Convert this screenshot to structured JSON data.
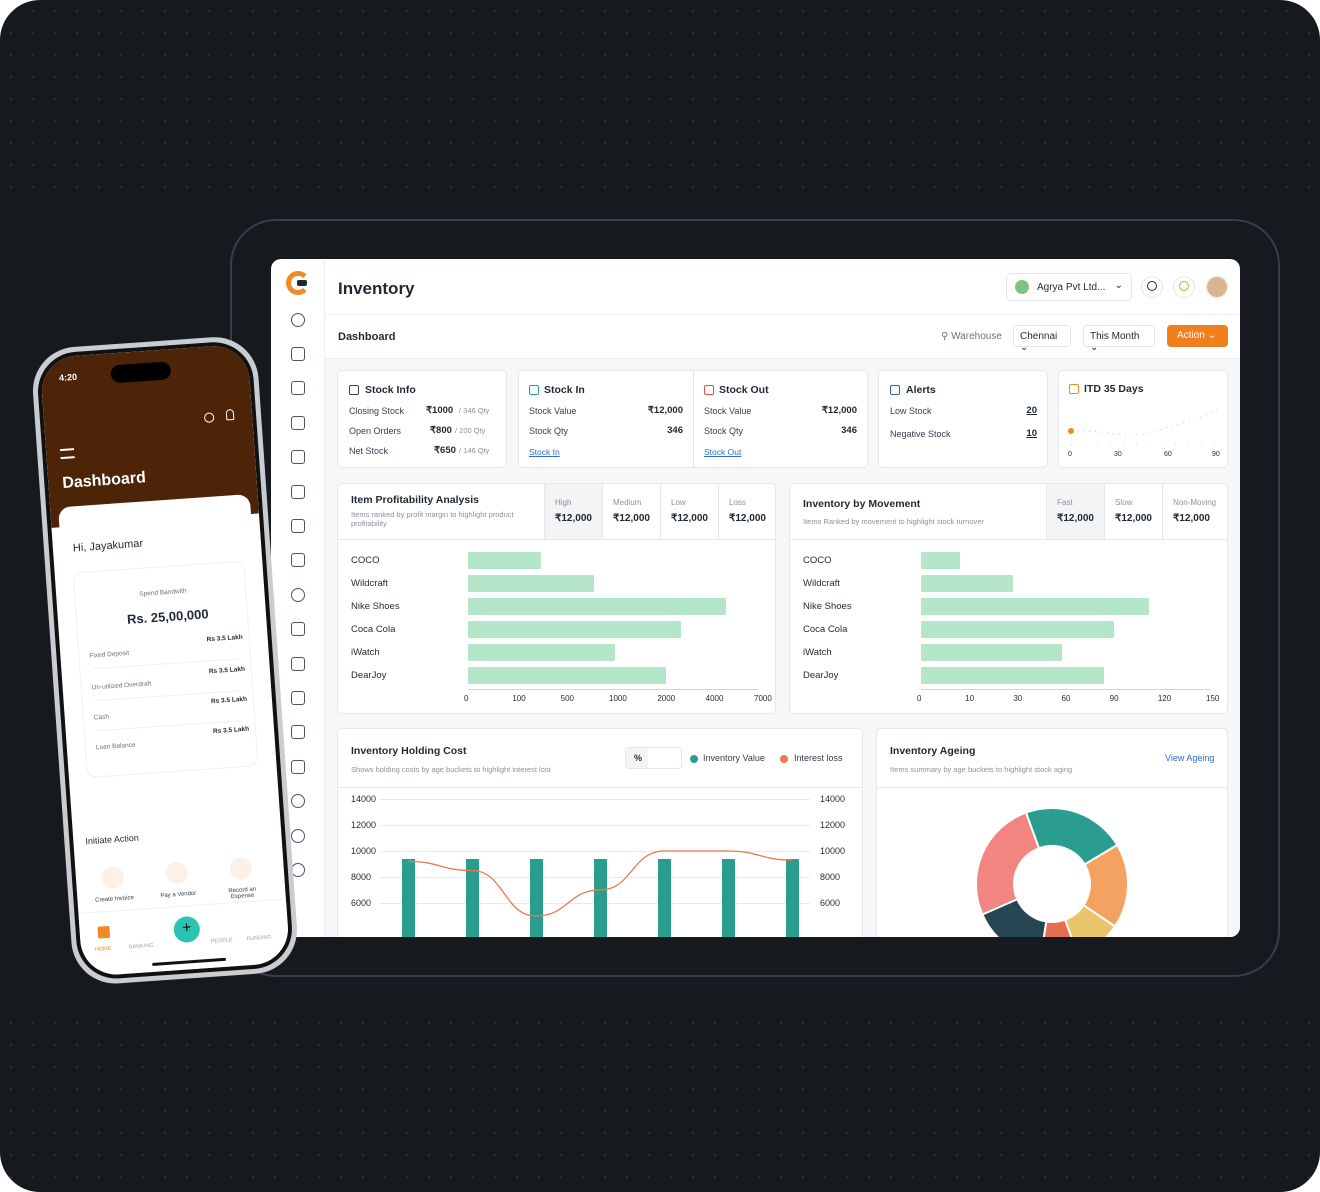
{
  "app": {
    "title": "Inventory",
    "company": "Agrya Pvt Ltd...",
    "company_logo_text": "Agrya",
    "subheader": "Dashboard",
    "filters": {
      "warehouse_label": "Warehouse",
      "warehouse": "Chennai",
      "period": "This Month",
      "action": "Action"
    }
  },
  "stock_info": {
    "title": "Stock Info",
    "rows": [
      {
        "label": "Closing Stock",
        "value": "₹1000",
        "qty": "/ 346 Qty"
      },
      {
        "label": "Open Orders",
        "value": "₹800",
        "qty": "/ 200 Qty"
      },
      {
        "label": "Net Stock",
        "value": "₹650",
        "qty": "/ 146 Qty"
      }
    ]
  },
  "stock_in": {
    "title": "Stock In",
    "rows": [
      {
        "label": "Stock Value",
        "value": "₹12,000"
      },
      {
        "label": "Stock Qty",
        "value": "346"
      }
    ],
    "link": "Stock In"
  },
  "stock_out": {
    "title": "Stock Out",
    "rows": [
      {
        "label": "Stock Value",
        "value": "₹12,000"
      },
      {
        "label": "Stock Qty",
        "value": "346"
      }
    ],
    "link": "Stock Out"
  },
  "alerts": {
    "title": "Alerts",
    "rows": [
      {
        "label": "Low Stock",
        "value": "20"
      },
      {
        "label": "Negative Stock",
        "value": "10"
      }
    ]
  },
  "itd": {
    "title": "ITD 35 Days",
    "ticks": [
      "0",
      "30",
      "60",
      "90"
    ]
  },
  "profitability": {
    "title": "Item Profitability Analysis",
    "subtitle": "Items ranked by profit margin to highlight product profitability",
    "stats": [
      {
        "label": "High",
        "value": "₹12,000"
      },
      {
        "label": "Medium",
        "value": "₹12,000"
      },
      {
        "label": "Low",
        "value": "₹12,000"
      },
      {
        "label": "Loss",
        "value": "₹12,000"
      }
    ],
    "x_ticks": [
      "0",
      "100",
      "500",
      "1000",
      "2000",
      "4000",
      "7000"
    ]
  },
  "movement": {
    "title": "Inventory by Movement",
    "subtitle": "Items Ranked by movement to highlight stock turnover",
    "stats": [
      {
        "label": "Fast",
        "value": "₹12,000"
      },
      {
        "label": "Slow",
        "value": "₹12,000"
      },
      {
        "label": "Non-Moving",
        "value": "₹12,000"
      }
    ],
    "x_ticks": [
      "0",
      "10",
      "30",
      "60",
      "90",
      "120",
      "150"
    ]
  },
  "holding": {
    "title": "Inventory Holding Cost",
    "subtitle": "Shows holding costs by age buckets to highlight interest lost",
    "toggle": "%",
    "legend": [
      {
        "name": "Inventory Value",
        "color": "#2a9d8f"
      },
      {
        "name": "Interest loss",
        "color": "#f2784b"
      }
    ],
    "y_ticks": [
      "14000",
      "12000",
      "10000",
      "8000",
      "6000"
    ]
  },
  "ageing": {
    "title": "Inventory Ageing",
    "subtitle": "Items summary by age buckets to highlight stock aging",
    "link": "View Ageing",
    "colors": [
      "#2a9d8f",
      "#f4a261",
      "#e9c46a",
      "#e76f51",
      "#264653",
      "#f28482"
    ]
  },
  "phone": {
    "time": "4:20",
    "title": "Dashboard",
    "greeting": "Hi, Jayakumar",
    "bandwidth_label": "Spend Bandwith",
    "bandwidth_value": "Rs. 25,00,000",
    "rows": [
      {
        "label": "Fixed Deposit",
        "value": "Rs 3.5 Lakh"
      },
      {
        "label": "Un-utilized Overdraft",
        "value": "Rs 3.5 Lakh"
      },
      {
        "label": "Cash",
        "value": "Rs 3.5 Lakh"
      },
      {
        "label": "Loan Balance",
        "value": "Rs 3.5 Lakh"
      }
    ],
    "section": "Initiate Action",
    "actions": [
      "Create Invoice",
      "Pay a Vendor",
      "Record an Expense"
    ],
    "nav": [
      "HOME",
      "BANKING",
      "PEOPLE",
      "FUNDING"
    ]
  },
  "chart_data": [
    {
      "type": "bar",
      "title": "Item Profitability Analysis",
      "categories": [
        "COCO",
        "Wildcraft",
        "Nike Shoes",
        "Coca Cola",
        "iWatch",
        "DearJoy"
      ],
      "values": [
        300,
        800,
        5000,
        2800,
        1050,
        2200
      ],
      "x_ticks": [
        "0",
        "100",
        "500",
        "1000",
        "2000",
        "4000",
        "7000"
      ]
    },
    {
      "type": "bar",
      "title": "Inventory by Movement",
      "categories": [
        "COCO",
        "Wildcraft",
        "Nike Shoes",
        "Coca Cola",
        "iWatch",
        "DearJoy"
      ],
      "values": [
        8,
        28,
        112,
        90,
        58,
        84
      ],
      "x_ticks": [
        "0",
        "10",
        "30",
        "60",
        "90",
        "120",
        "150"
      ]
    },
    {
      "type": "bar",
      "title": "Inventory Holding Cost",
      "series": [
        {
          "name": "Inventory Value",
          "values": [
            9400,
            9400,
            9400,
            9400,
            9400,
            9400,
            9400
          ]
        },
        {
          "name": "Interest loss",
          "values": [
            9200,
            8500,
            5000,
            7000,
            10000,
            10000,
            9300
          ]
        }
      ],
      "ylim": [
        4000,
        14000
      ]
    },
    {
      "type": "pie",
      "title": "Inventory Ageing",
      "values": [
        22,
        18,
        10,
        8,
        16,
        26
      ]
    }
  ]
}
